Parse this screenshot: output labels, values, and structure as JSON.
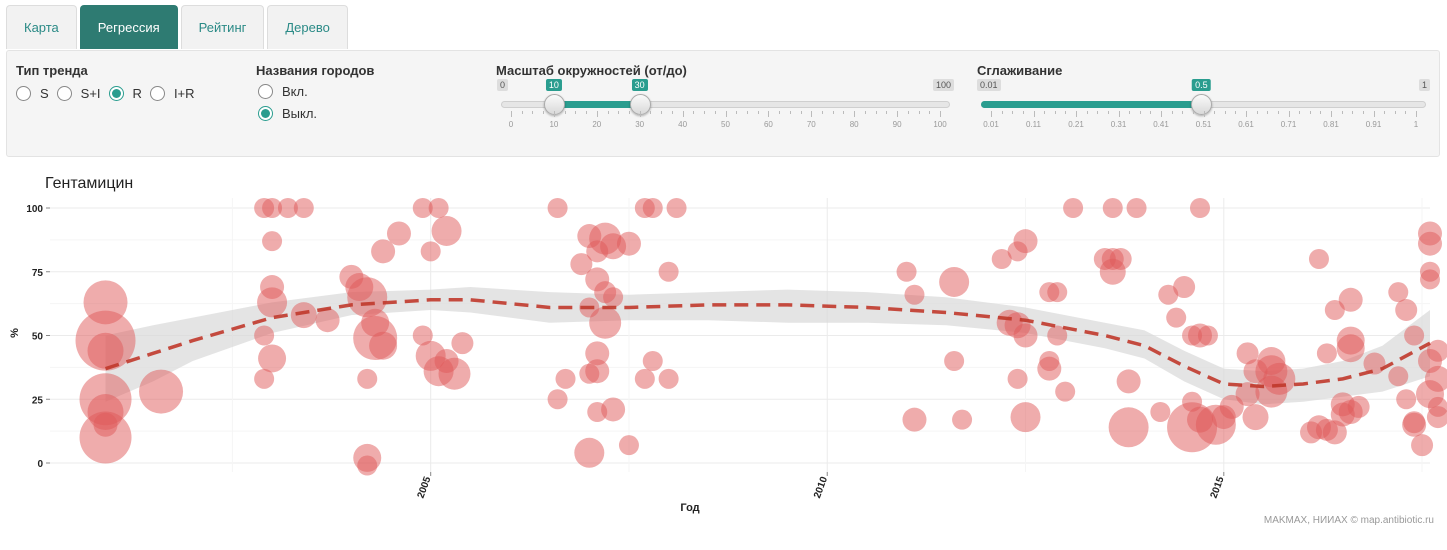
{
  "tabs": [
    {
      "label": "Карта",
      "active": false
    },
    {
      "label": "Регрессия",
      "active": true
    },
    {
      "label": "Рейтинг",
      "active": false
    },
    {
      "label": "Дерево",
      "active": false
    }
  ],
  "controls": {
    "trend": {
      "label": "Тип тренда",
      "options": [
        "S",
        "S+I",
        "R",
        "I+R"
      ],
      "selected": "R"
    },
    "city_names": {
      "label": "Названия городов",
      "options": [
        "Вкл.",
        "Выкл."
      ],
      "selected": "Выкл."
    },
    "scale": {
      "label": "Масштаб окружностей (от/до)",
      "min": 0,
      "max": 100,
      "from": 10,
      "to": 30,
      "min_label": "0",
      "max_label": "100",
      "from_label": "10",
      "to_label": "30",
      "tick_labels": [
        "0",
        "10",
        "20",
        "30",
        "40",
        "50",
        "60",
        "70",
        "80",
        "90",
        "100"
      ]
    },
    "smoothing": {
      "label": "Сглаживание",
      "min": 0.01,
      "max": 1,
      "value": 0.5,
      "min_label": "0.01",
      "max_label": "1",
      "value_label": "0.5",
      "tick_labels": [
        "0.01",
        "0.11",
        "0.21",
        "0.31",
        "0.41",
        "0.51",
        "0.61",
        "0.71",
        "0.81",
        "0.91",
        "1"
      ]
    }
  },
  "chart_data": {
    "type": "scatter",
    "title": "Гентамицин",
    "xlabel": "Год",
    "ylabel": "%",
    "xlim": [
      2000.2,
      2017.6
    ],
    "ylim": [
      0,
      100
    ],
    "x_ticks": [
      2005,
      2010,
      2015
    ],
    "y_ticks": [
      0,
      25,
      50,
      75,
      100
    ],
    "point_color": "#e05a5a",
    "trend_color": "#c0392b",
    "band_color": "#d9d9d9",
    "points": [
      {
        "x": 2000.9,
        "y": 63,
        "s": 22
      },
      {
        "x": 2000.9,
        "y": 48,
        "s": 30
      },
      {
        "x": 2000.9,
        "y": 44,
        "s": 18
      },
      {
        "x": 2000.9,
        "y": 25,
        "s": 26
      },
      {
        "x": 2000.9,
        "y": 20,
        "s": 18
      },
      {
        "x": 2000.9,
        "y": 10,
        "s": 26
      },
      {
        "x": 2000.9,
        "y": 15,
        "s": 12
      },
      {
        "x": 2001.6,
        "y": 28,
        "s": 22
      },
      {
        "x": 2002.9,
        "y": 100,
        "s": 10
      },
      {
        "x": 2003.0,
        "y": 100,
        "s": 10
      },
      {
        "x": 2003.2,
        "y": 100,
        "s": 10
      },
      {
        "x": 2003.4,
        "y": 100,
        "s": 10
      },
      {
        "x": 2003.0,
        "y": 87,
        "s": 10
      },
      {
        "x": 2003.0,
        "y": 69,
        "s": 12
      },
      {
        "x": 2003.0,
        "y": 63,
        "s": 15
      },
      {
        "x": 2002.9,
        "y": 50,
        "s": 10
      },
      {
        "x": 2003.0,
        "y": 41,
        "s": 14
      },
      {
        "x": 2002.9,
        "y": 33,
        "s": 10
      },
      {
        "x": 2003.4,
        "y": 58,
        "s": 13
      },
      {
        "x": 2003.7,
        "y": 56,
        "s": 12
      },
      {
        "x": 2004.0,
        "y": 73,
        "s": 12
      },
      {
        "x": 2004.1,
        "y": 69,
        "s": 14
      },
      {
        "x": 2004.2,
        "y": 65,
        "s": 20
      },
      {
        "x": 2004.3,
        "y": 55,
        "s": 14
      },
      {
        "x": 2004.3,
        "y": 49,
        "s": 22
      },
      {
        "x": 2004.4,
        "y": 46,
        "s": 14
      },
      {
        "x": 2004.2,
        "y": 33,
        "s": 10
      },
      {
        "x": 2004.4,
        "y": 83,
        "s": 12
      },
      {
        "x": 2004.6,
        "y": 90,
        "s": 12
      },
      {
        "x": 2004.2,
        "y": 2,
        "s": 14
      },
      {
        "x": 2004.2,
        "y": -1,
        "s": 10
      },
      {
        "x": 2004.9,
        "y": 100,
        "s": 10
      },
      {
        "x": 2005.1,
        "y": 100,
        "s": 10
      },
      {
        "x": 2005.0,
        "y": 83,
        "s": 10
      },
      {
        "x": 2005.2,
        "y": 91,
        "s": 15
      },
      {
        "x": 2004.9,
        "y": 50,
        "s": 10
      },
      {
        "x": 2005.0,
        "y": 42,
        "s": 15
      },
      {
        "x": 2005.2,
        "y": 40,
        "s": 12
      },
      {
        "x": 2005.1,
        "y": 36,
        "s": 15
      },
      {
        "x": 2005.3,
        "y": 35,
        "s": 16
      },
      {
        "x": 2005.4,
        "y": 47,
        "s": 11
      },
      {
        "x": 2006.6,
        "y": 100,
        "s": 10
      },
      {
        "x": 2007.0,
        "y": 89,
        "s": 12
      },
      {
        "x": 2007.2,
        "y": 88,
        "s": 16
      },
      {
        "x": 2007.3,
        "y": 85,
        "s": 13
      },
      {
        "x": 2007.1,
        "y": 83,
        "s": 11
      },
      {
        "x": 2006.9,
        "y": 78,
        "s": 11
      },
      {
        "x": 2007.1,
        "y": 72,
        "s": 12
      },
      {
        "x": 2007.2,
        "y": 67,
        "s": 11
      },
      {
        "x": 2007.3,
        "y": 65,
        "s": 10
      },
      {
        "x": 2007.0,
        "y": 61,
        "s": 10
      },
      {
        "x": 2007.2,
        "y": 55,
        "s": 16
      },
      {
        "x": 2007.1,
        "y": 43,
        "s": 12
      },
      {
        "x": 2007.0,
        "y": 35,
        "s": 10
      },
      {
        "x": 2007.1,
        "y": 36,
        "s": 12
      },
      {
        "x": 2006.7,
        "y": 33,
        "s": 10
      },
      {
        "x": 2006.6,
        "y": 25,
        "s": 10
      },
      {
        "x": 2007.1,
        "y": 20,
        "s": 10
      },
      {
        "x": 2007.3,
        "y": 21,
        "s": 12
      },
      {
        "x": 2007.0,
        "y": 4,
        "s": 15
      },
      {
        "x": 2007.5,
        "y": 7,
        "s": 10
      },
      {
        "x": 2007.5,
        "y": 86,
        "s": 12
      },
      {
        "x": 2007.7,
        "y": 100,
        "s": 10
      },
      {
        "x": 2007.8,
        "y": 100,
        "s": 10
      },
      {
        "x": 2008.1,
        "y": 100,
        "s": 10
      },
      {
        "x": 2008.0,
        "y": 75,
        "s": 10
      },
      {
        "x": 2007.8,
        "y": 40,
        "s": 10
      },
      {
        "x": 2007.7,
        "y": 33,
        "s": 10
      },
      {
        "x": 2008.0,
        "y": 33,
        "s": 10
      },
      {
        "x": 2011.0,
        "y": 75,
        "s": 10
      },
      {
        "x": 2011.1,
        "y": 66,
        "s": 10
      },
      {
        "x": 2011.1,
        "y": 17,
        "s": 12
      },
      {
        "x": 2011.6,
        "y": 71,
        "s": 15
      },
      {
        "x": 2011.6,
        "y": 40,
        "s": 10
      },
      {
        "x": 2011.7,
        "y": 17,
        "s": 10
      },
      {
        "x": 2012.2,
        "y": 80,
        "s": 10
      },
      {
        "x": 2012.4,
        "y": 83,
        "s": 10
      },
      {
        "x": 2012.5,
        "y": 87,
        "s": 12
      },
      {
        "x": 2012.3,
        "y": 55,
        "s": 13
      },
      {
        "x": 2012.4,
        "y": 54,
        "s": 13
      },
      {
        "x": 2012.5,
        "y": 50,
        "s": 12
      },
      {
        "x": 2012.4,
        "y": 33,
        "s": 10
      },
      {
        "x": 2012.5,
        "y": 18,
        "s": 15
      },
      {
        "x": 2012.8,
        "y": 67,
        "s": 10
      },
      {
        "x": 2012.9,
        "y": 67,
        "s": 10
      },
      {
        "x": 2012.8,
        "y": 37,
        "s": 12
      },
      {
        "x": 2012.8,
        "y": 40,
        "s": 10
      },
      {
        "x": 2012.9,
        "y": 50,
        "s": 10
      },
      {
        "x": 2013.0,
        "y": 28,
        "s": 10
      },
      {
        "x": 2013.1,
        "y": 100,
        "s": 10
      },
      {
        "x": 2013.6,
        "y": 100,
        "s": 10
      },
      {
        "x": 2013.9,
        "y": 100,
        "s": 10
      },
      {
        "x": 2013.5,
        "y": 80,
        "s": 11
      },
      {
        "x": 2013.6,
        "y": 80,
        "s": 11
      },
      {
        "x": 2013.7,
        "y": 80,
        "s": 11
      },
      {
        "x": 2013.6,
        "y": 75,
        "s": 13
      },
      {
        "x": 2013.8,
        "y": 32,
        "s": 12
      },
      {
        "x": 2013.8,
        "y": 14,
        "s": 20
      },
      {
        "x": 2014.3,
        "y": 66,
        "s": 10
      },
      {
        "x": 2014.4,
        "y": 57,
        "s": 10
      },
      {
        "x": 2014.5,
        "y": 69,
        "s": 11
      },
      {
        "x": 2014.7,
        "y": 50,
        "s": 12
      },
      {
        "x": 2014.6,
        "y": 50,
        "s": 10
      },
      {
        "x": 2014.8,
        "y": 50,
        "s": 10
      },
      {
        "x": 2014.2,
        "y": 20,
        "s": 10
      },
      {
        "x": 2014.6,
        "y": 24,
        "s": 10
      },
      {
        "x": 2014.7,
        "y": 17,
        "s": 13
      },
      {
        "x": 2014.6,
        "y": 14,
        "s": 25
      },
      {
        "x": 2014.7,
        "y": 100,
        "s": 10
      },
      {
        "x": 2015.0,
        "y": 18,
        "s": 12
      },
      {
        "x": 2014.9,
        "y": 15,
        "s": 20
      },
      {
        "x": 2015.1,
        "y": 22,
        "s": 12
      },
      {
        "x": 2015.3,
        "y": 43,
        "s": 11
      },
      {
        "x": 2015.4,
        "y": 36,
        "s": 12
      },
      {
        "x": 2015.3,
        "y": 27,
        "s": 12
      },
      {
        "x": 2015.4,
        "y": 18,
        "s": 13
      },
      {
        "x": 2015.6,
        "y": 40,
        "s": 14
      },
      {
        "x": 2015.6,
        "y": 36,
        "s": 16
      },
      {
        "x": 2015.7,
        "y": 33,
        "s": 16
      },
      {
        "x": 2015.6,
        "y": 28,
        "s": 16
      },
      {
        "x": 2016.2,
        "y": 80,
        "s": 10
      },
      {
        "x": 2016.1,
        "y": 12,
        "s": 11
      },
      {
        "x": 2016.2,
        "y": 14,
        "s": 12
      },
      {
        "x": 2016.4,
        "y": 60,
        "s": 10
      },
      {
        "x": 2016.3,
        "y": 43,
        "s": 10
      },
      {
        "x": 2016.5,
        "y": 23,
        "s": 12
      },
      {
        "x": 2016.5,
        "y": 19,
        "s": 12
      },
      {
        "x": 2016.3,
        "y": 13,
        "s": 11
      },
      {
        "x": 2016.4,
        "y": 12,
        "s": 12
      },
      {
        "x": 2016.6,
        "y": 64,
        "s": 12
      },
      {
        "x": 2016.6,
        "y": 48,
        "s": 14
      },
      {
        "x": 2016.6,
        "y": 45,
        "s": 14
      },
      {
        "x": 2016.7,
        "y": 22,
        "s": 11
      },
      {
        "x": 2016.6,
        "y": 20,
        "s": 12
      },
      {
        "x": 2016.9,
        "y": 39,
        "s": 11
      },
      {
        "x": 2017.2,
        "y": 67,
        "s": 10
      },
      {
        "x": 2017.3,
        "y": 60,
        "s": 11
      },
      {
        "x": 2017.2,
        "y": 34,
        "s": 10
      },
      {
        "x": 2017.4,
        "y": 50,
        "s": 10
      },
      {
        "x": 2017.4,
        "y": 16,
        "s": 11
      },
      {
        "x": 2017.4,
        "y": 15,
        "s": 12
      },
      {
        "x": 2017.5,
        "y": 7,
        "s": 11
      },
      {
        "x": 2017.6,
        "y": 90,
        "s": 12
      },
      {
        "x": 2017.6,
        "y": 86,
        "s": 12
      },
      {
        "x": 2017.6,
        "y": 75,
        "s": 10
      },
      {
        "x": 2017.6,
        "y": 72,
        "s": 10
      },
      {
        "x": 2017.7,
        "y": 44,
        "s": 11
      },
      {
        "x": 2017.6,
        "y": 40,
        "s": 12
      },
      {
        "x": 2017.7,
        "y": 33,
        "s": 13
      },
      {
        "x": 2017.6,
        "y": 27,
        "s": 14
      },
      {
        "x": 2017.7,
        "y": 22,
        "s": 10
      },
      {
        "x": 2017.7,
        "y": 18,
        "s": 11
      },
      {
        "x": 2017.3,
        "y": 25,
        "s": 10
      }
    ],
    "trend": [
      {
        "x": 2000.9,
        "y": 37,
        "lo": 24,
        "hi": 50
      },
      {
        "x": 2001.5,
        "y": 43,
        "lo": 32,
        "hi": 54
      },
      {
        "x": 2002.0,
        "y": 48,
        "lo": 40,
        "hi": 57
      },
      {
        "x": 2003.0,
        "y": 57,
        "lo": 51,
        "hi": 63
      },
      {
        "x": 2004.0,
        "y": 62,
        "lo": 58,
        "hi": 67
      },
      {
        "x": 2005.0,
        "y": 64,
        "lo": 60,
        "hi": 68
      },
      {
        "x": 2005.5,
        "y": 64,
        "lo": 59,
        "hi": 69
      },
      {
        "x": 2006.5,
        "y": 61,
        "lo": 55,
        "hi": 67
      },
      {
        "x": 2007.5,
        "y": 61,
        "lo": 56,
        "hi": 66
      },
      {
        "x": 2008.5,
        "y": 62,
        "lo": 56,
        "hi": 67
      },
      {
        "x": 2009.5,
        "y": 62,
        "lo": 55,
        "hi": 68
      },
      {
        "x": 2010.5,
        "y": 61,
        "lo": 55,
        "hi": 67
      },
      {
        "x": 2011.5,
        "y": 59,
        "lo": 54,
        "hi": 65
      },
      {
        "x": 2012.5,
        "y": 56,
        "lo": 51,
        "hi": 61
      },
      {
        "x": 2013.5,
        "y": 50,
        "lo": 45,
        "hi": 55
      },
      {
        "x": 2014.0,
        "y": 46,
        "lo": 41,
        "hi": 52
      },
      {
        "x": 2014.5,
        "y": 38,
        "lo": 32,
        "hi": 44
      },
      {
        "x": 2015.0,
        "y": 31,
        "lo": 25,
        "hi": 37
      },
      {
        "x": 2015.5,
        "y": 30,
        "lo": 23,
        "hi": 36
      },
      {
        "x": 2016.0,
        "y": 31,
        "lo": 24,
        "hi": 37
      },
      {
        "x": 2016.5,
        "y": 33,
        "lo": 26,
        "hi": 40
      },
      {
        "x": 2017.0,
        "y": 37,
        "lo": 28,
        "hi": 46
      },
      {
        "x": 2017.6,
        "y": 47,
        "lo": 34,
        "hi": 60
      }
    ]
  },
  "footer": "MAKMAX, НИИАХ © map.antibiotic.ru"
}
